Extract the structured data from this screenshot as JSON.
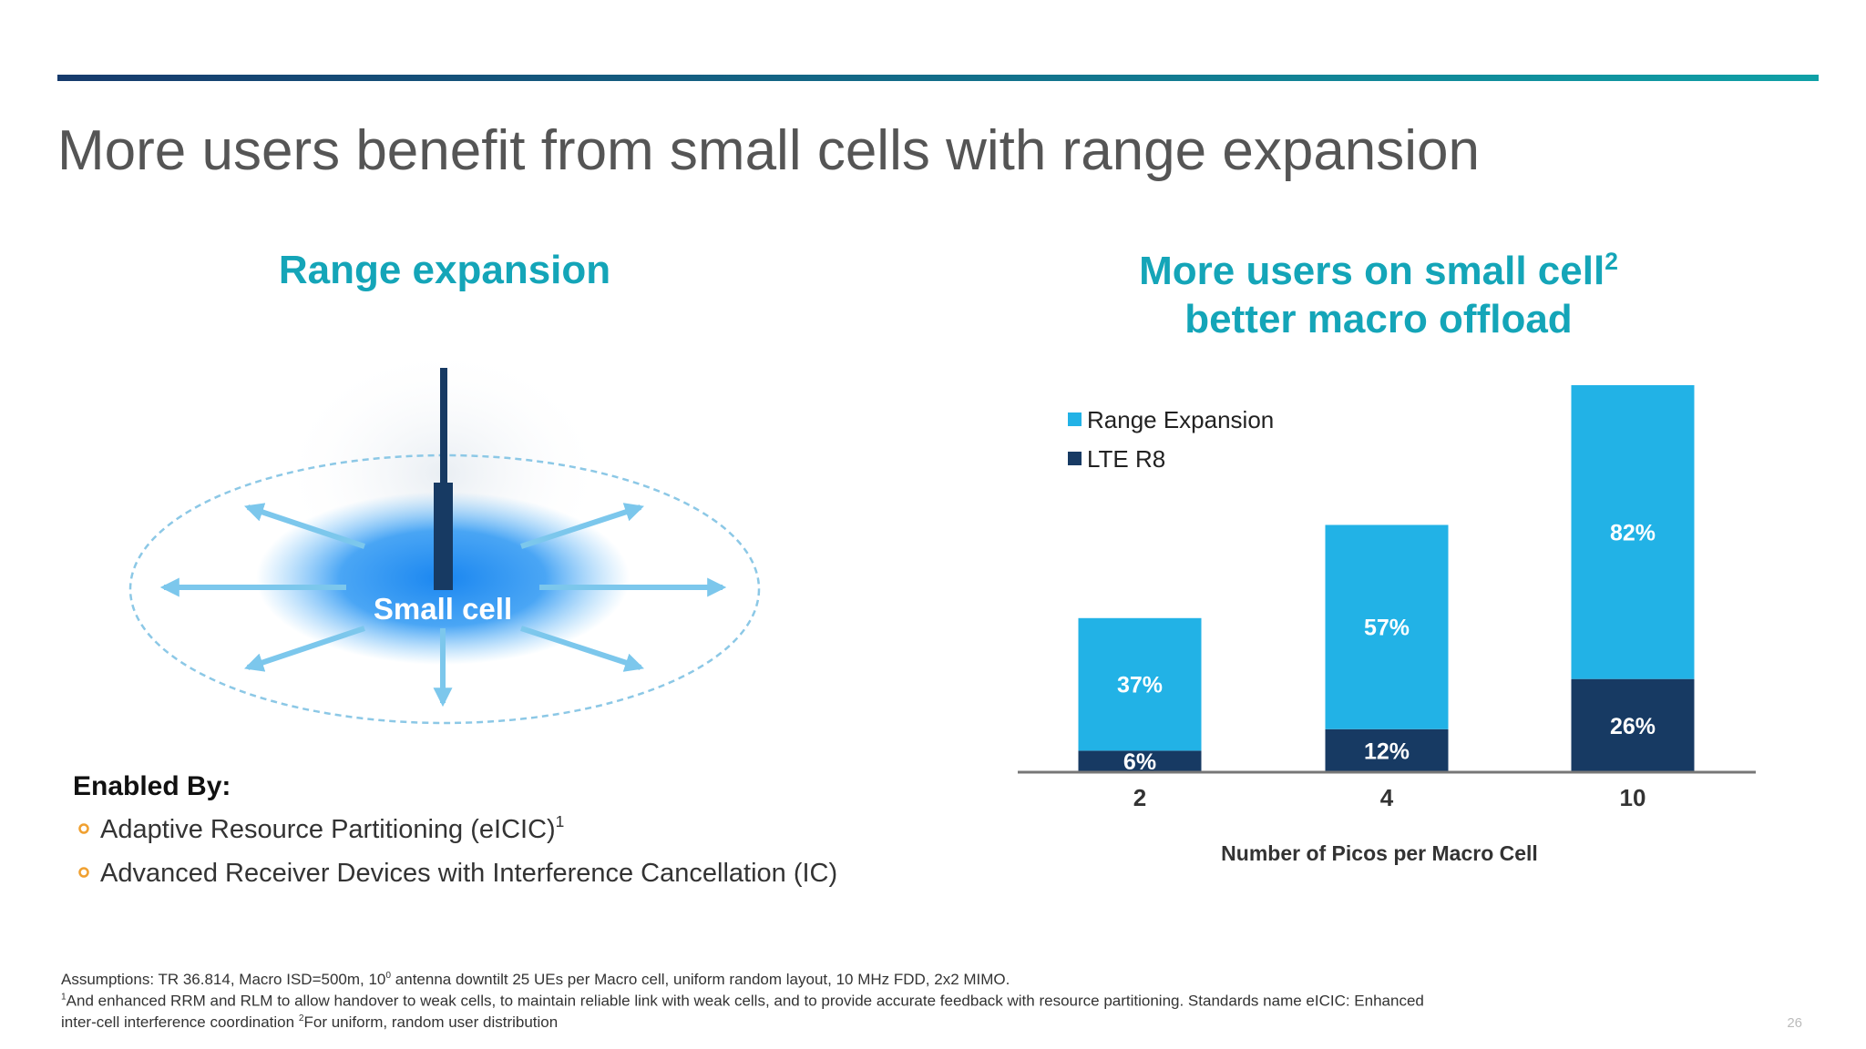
{
  "title": "More users benefit from small cells with range expansion",
  "diagram": {
    "title": "Range expansion",
    "label": "Small cell"
  },
  "enabled": {
    "heading": "Enabled By:",
    "items": [
      {
        "text": "Adaptive Resource Partitioning (eICIC)",
        "sup": "1"
      },
      {
        "text": "Advanced Receiver Devices with Interference Cancellation (IC)"
      }
    ]
  },
  "chart_data": {
    "type": "stacked_bar",
    "title": [
      "More users on small cell",
      "better macro offload"
    ],
    "title_sup": "2",
    "categories": [
      "2",
      "4",
      "10"
    ],
    "xlabel": "Number of Picos per Macro Cell",
    "series": [
      {
        "name": "Range Expansion",
        "color": "#22b2e6",
        "values": [
          37,
          57,
          82
        ],
        "value_labels": [
          "37%",
          "57%",
          "82%"
        ]
      },
      {
        "name": "LTE R8",
        "color": "#173a63",
        "values": [
          6,
          12,
          26
        ],
        "value_labels": [
          "6%",
          "12%",
          "26%"
        ]
      }
    ]
  },
  "footnotes": [
    {
      "pre": "Assumptions: TR 36.814, Macro ISD=500m, 10",
      "sup": "0",
      "post": " antenna downtilt 25 UEs per Macro cell, uniform random layout, 10 MHz FDD, 2x2 MIMO."
    },
    {
      "sup": "1",
      "post": "And enhanced RRM and RLM to allow handover to weak cells, to maintain reliable link with weak cells, and to provide accurate feedback with resource partitioning. Standards name eICIC: Enhanced"
    },
    {
      "pre": "inter-cell interference coordination ",
      "sup": "2",
      "post": "For uniform, random user distribution"
    }
  ],
  "page_number": "26"
}
